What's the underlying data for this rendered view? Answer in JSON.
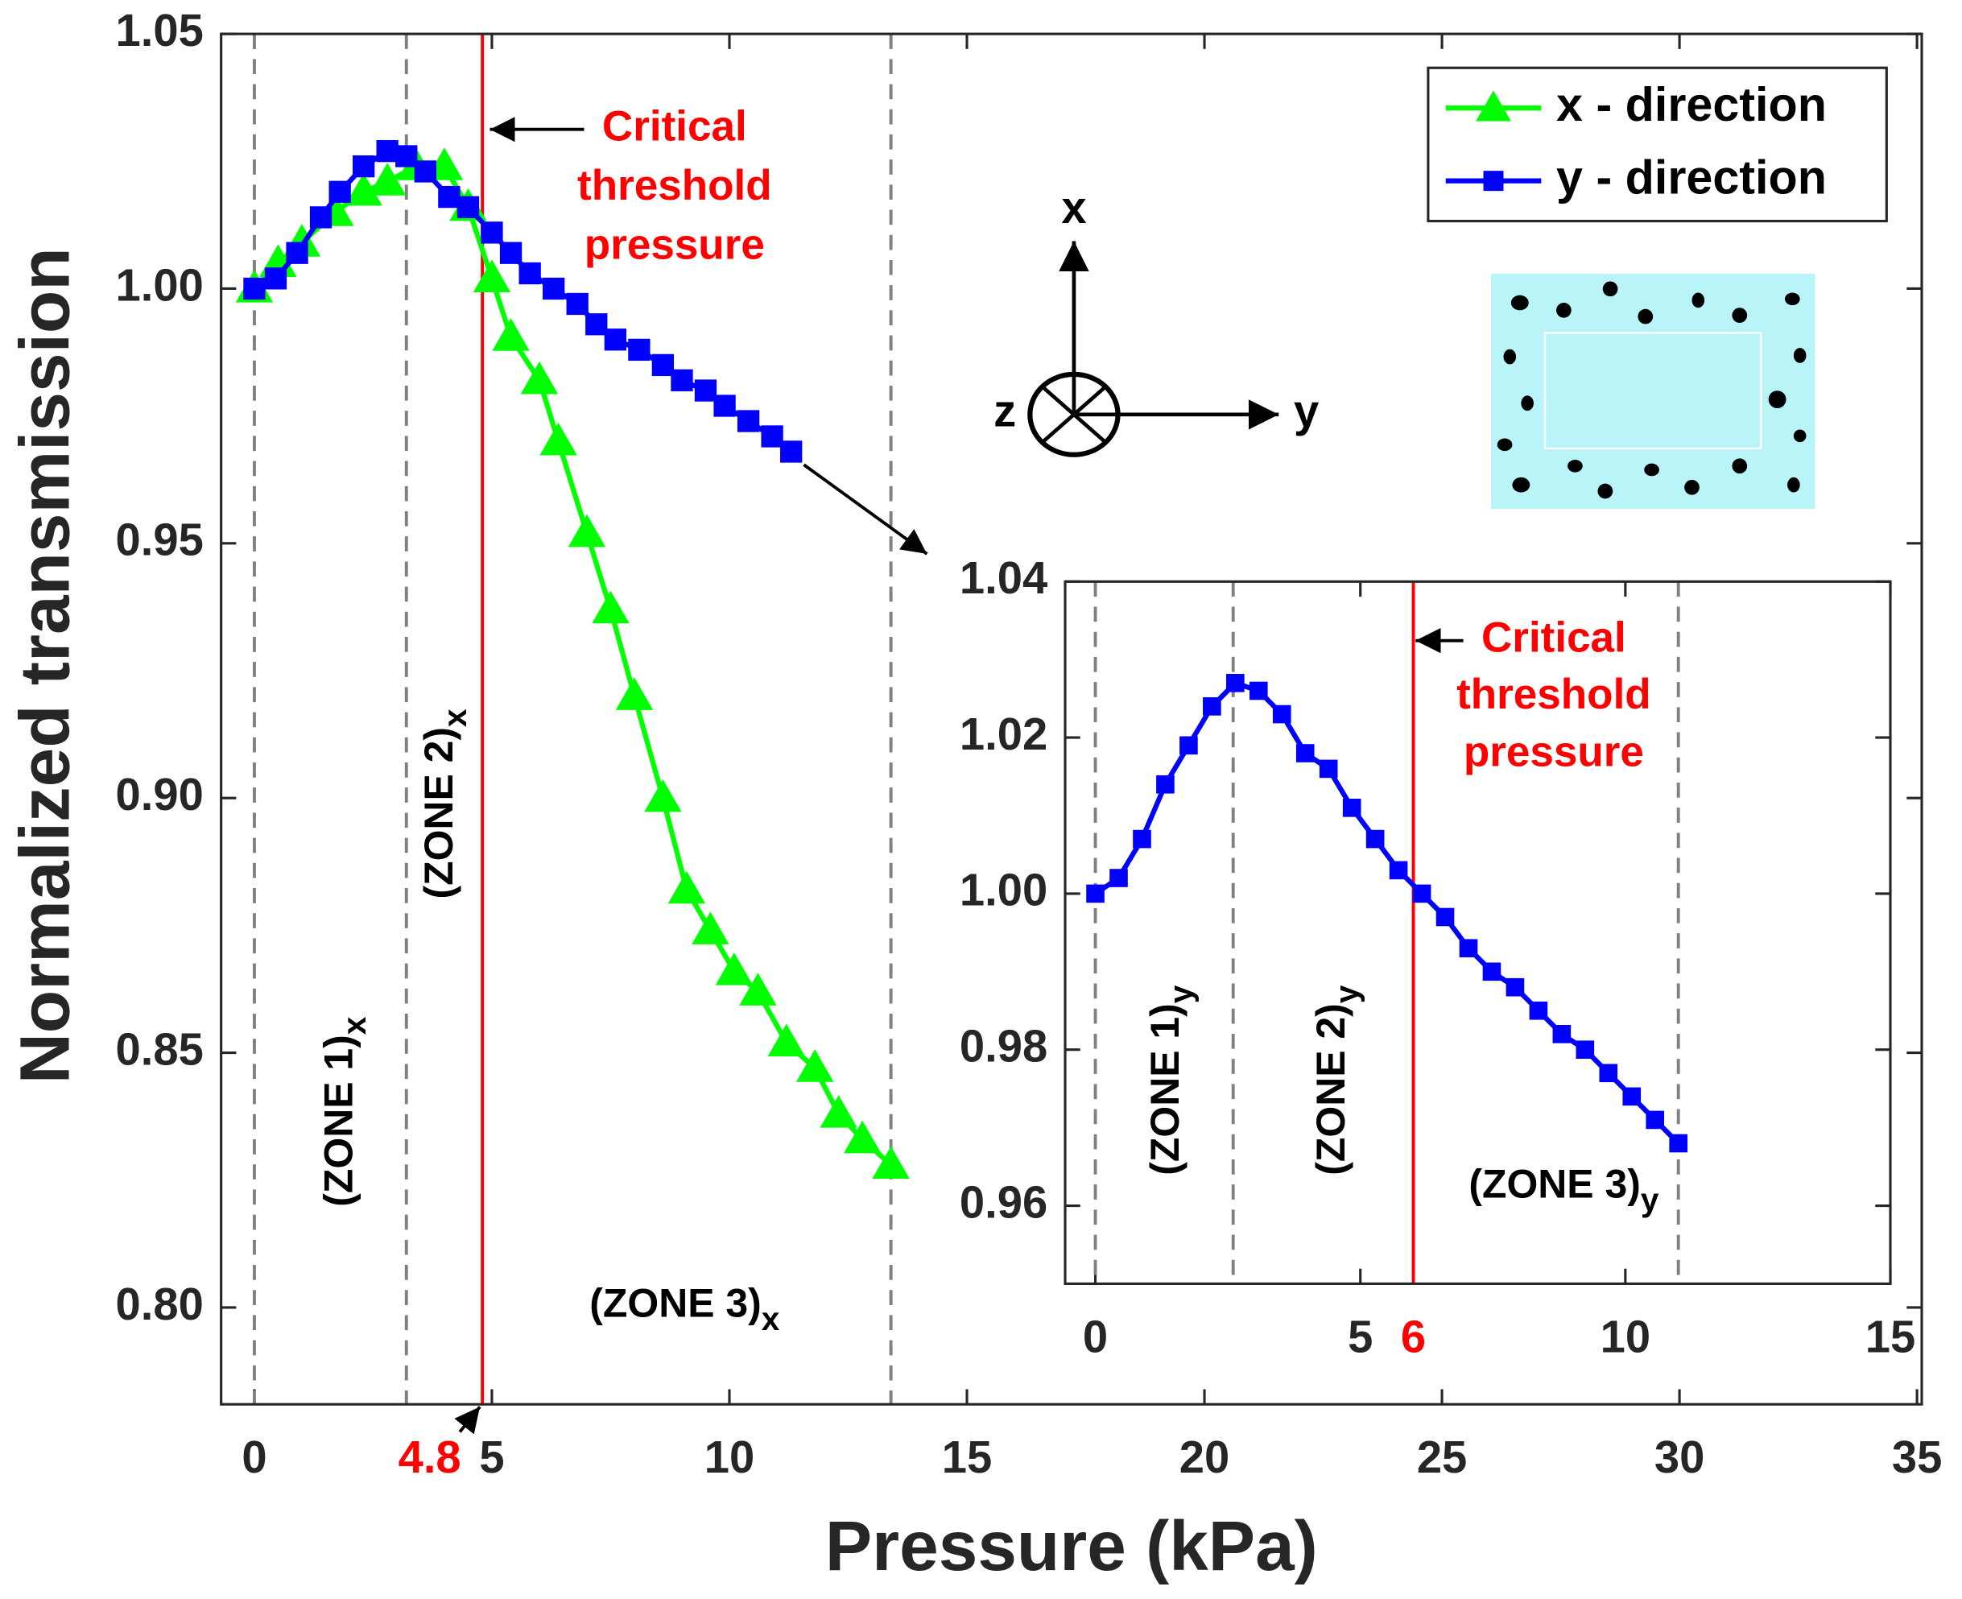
{
  "chart_data": [
    {
      "type": "line",
      "xlabel": "Pressure (kPa)",
      "ylabel": "Normalized transmission",
      "xlim": [
        -0.7,
        35.1
      ],
      "ylim": [
        0.781,
        1.05
      ],
      "xticks": [
        0,
        5,
        10,
        15,
        20,
        25,
        30,
        35
      ],
      "yticks": [
        {
          "value": 0.8,
          "label": "0.80"
        },
        0.85,
        {
          "value": 0.9,
          "label": "0.90"
        },
        0.95,
        {
          "value": 1,
          "label": "1.00"
        },
        1.05
      ],
      "zone_lines": [
        0,
        3.2,
        13.4
      ],
      "threshold": {
        "value": 4.8,
        "label": "4.8",
        "color": "#ff0000"
      },
      "annotation": [
        "Critical",
        "threshold",
        "pressure"
      ],
      "zones": [
        {
          "text": "(ZONE 1)",
          "sub": "x"
        },
        {
          "text": "(ZONE 2)",
          "sub": "x"
        },
        {
          "text": "(ZONE 3)",
          "sub": "x"
        }
      ],
      "legend": "upper right",
      "series": [
        {
          "name": "x - direction",
          "color": "#00ff00",
          "marker": "triangle",
          "x": [
            0,
            0.5,
            1.0,
            1.7,
            2.3,
            2.8,
            3.4,
            4.0,
            4.5,
            5.0,
            5.4,
            6.0,
            6.4,
            7.0,
            7.5,
            8.0,
            8.6,
            9.1,
            9.6,
            10.1,
            10.6,
            11.2,
            11.8,
            12.3,
            12.8,
            13.4
          ],
          "values": [
            1.0,
            1.005,
            1.009,
            1.015,
            1.019,
            1.021,
            1.024,
            1.024,
            1.016,
            1.002,
            0.9905,
            0.982,
            0.97,
            0.952,
            0.937,
            0.92,
            0.9,
            0.882,
            0.874,
            0.866,
            0.862,
            0.852,
            0.847,
            0.838,
            0.833,
            0.828
          ]
        },
        {
          "name": "y - direction",
          "color": "#0000ff",
          "marker": "square",
          "x": [
            0,
            0.45,
            0.9,
            1.4,
            1.8,
            2.3,
            2.8,
            3.2,
            3.6,
            4.1,
            4.5,
            5.0,
            5.4,
            5.8,
            6.3,
            6.8,
            7.2,
            7.6,
            8.1,
            8.6,
            9.0,
            9.5,
            9.9,
            10.4,
            10.9,
            11.3
          ],
          "values": [
            1.0,
            1.002,
            1.007,
            1.014,
            1.019,
            1.024,
            1.027,
            1.026,
            1.023,
            1.018,
            1.016,
            1.011,
            1.007,
            1.003,
            1.0,
            0.997,
            0.993,
            0.99,
            0.988,
            0.985,
            0.982,
            0.98,
            0.977,
            0.974,
            0.971,
            0.968
          ]
        }
      ],
      "axes_labels": [
        "x",
        "y",
        "z"
      ]
    },
    {
      "type": "line",
      "xlim": [
        -0.57,
        15
      ],
      "ylim": [
        0.95,
        1.04
      ],
      "xticks": [
        0,
        5,
        10,
        15
      ],
      "yticks": [
        0.96,
        0.98,
        {
          "value": 1,
          "label": "1.00"
        },
        1.02,
        1.04
      ],
      "zone_lines": [
        0,
        2.6,
        11
      ],
      "threshold": {
        "value": 6,
        "label": "6",
        "color": "#ff0000"
      },
      "annotation": [
        "Critical",
        "threshold",
        "pressure"
      ],
      "zones": [
        {
          "text": "(ZONE 1)",
          "sub": "y"
        },
        {
          "text": "(ZONE 2)",
          "sub": "y"
        },
        {
          "text": "(ZONE 3)",
          "sub": "y"
        }
      ],
      "series": [
        {
          "color": "#0000ff",
          "marker": "square",
          "x": [
            0,
            0.44,
            0.88,
            1.32,
            1.76,
            2.2,
            2.64,
            3.08,
            3.52,
            3.96,
            4.4,
            4.84,
            5.28,
            5.72,
            6.16,
            6.6,
            7.04,
            7.48,
            7.92,
            8.36,
            8.8,
            9.24,
            9.68,
            10.12,
            10.56,
            11.0
          ],
          "values": [
            1.0,
            1.002,
            1.007,
            1.014,
            1.019,
            1.024,
            1.027,
            1.026,
            1.023,
            1.018,
            1.016,
            1.011,
            1.007,
            1.003,
            1.0,
            0.997,
            0.993,
            0.99,
            0.988,
            0.985,
            0.982,
            0.98,
            0.977,
            0.974,
            0.971,
            0.968
          ]
        }
      ]
    }
  ]
}
